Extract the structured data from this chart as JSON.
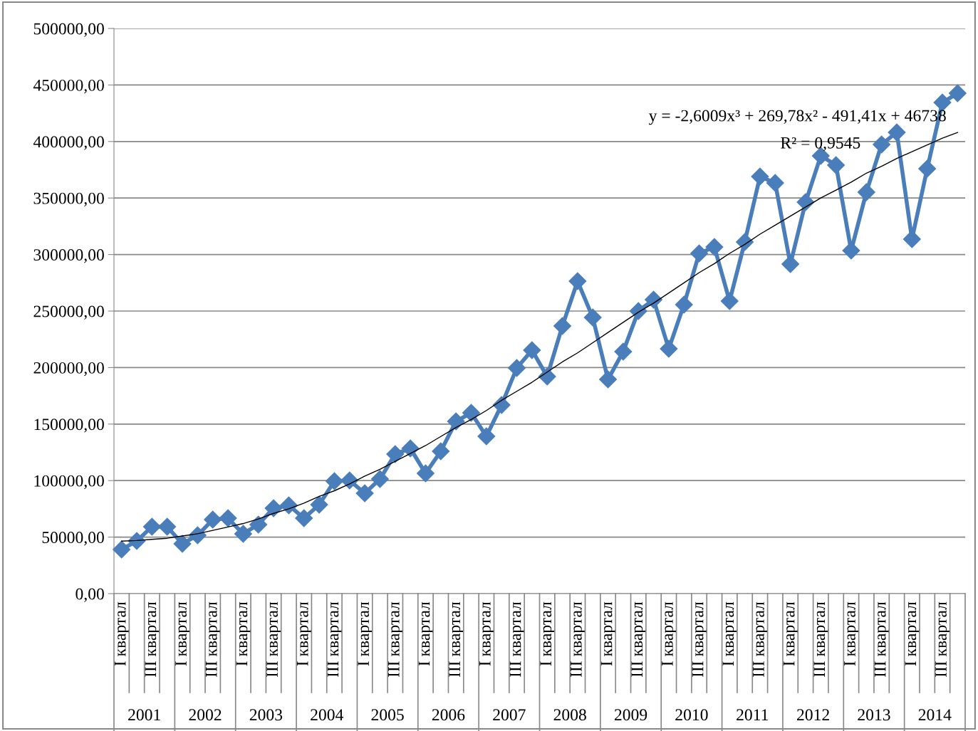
{
  "chart_data": {
    "type": "line",
    "categories": [
      "I квартал",
      null,
      "III квартал",
      null,
      "I квартал",
      null,
      "III квартал",
      null,
      "I квартал",
      null,
      "III квартал",
      null,
      "I квартал",
      null,
      "III квартал",
      null,
      "I квартал",
      null,
      "III квартал",
      null,
      "I квартал",
      null,
      "III квартал",
      null,
      "I квартал",
      null,
      "III квартал",
      null,
      "I квартал",
      null,
      "III квартал",
      null,
      "I квартал",
      null,
      "III квартал",
      null,
      "I квартал",
      null,
      "III квартал",
      null,
      "I квартал",
      null,
      "III квартал",
      null,
      "I квартал",
      null,
      "III квартал",
      null,
      "I квартал",
      null,
      "III квартал",
      null,
      "I квартал",
      null,
      "III квартал",
      null
    ],
    "series": [
      {
        "color": "#4a7ebb",
        "marker": "diamond",
        "values": [
          39000,
          46600,
          59200,
          59200,
          44100,
          51600,
          65500,
          66700,
          52900,
          61100,
          75600,
          78100,
          66700,
          78700,
          99500,
          100100,
          88800,
          101400,
          123400,
          128500,
          106400,
          125900,
          152400,
          159900,
          139200,
          166900,
          199600,
          215400,
          192100,
          236800,
          276400,
          244300,
          189500,
          214100,
          250000,
          260100,
          216600,
          255700,
          301000,
          306700,
          258800,
          311100,
          369000,
          363300,
          291500,
          346300,
          387300,
          379100,
          303500,
          355200,
          397400,
          408100,
          313600,
          375900,
          434500,
          442700
        ]
      },
      {
        "type": "line",
        "color": "#000000",
        "marker": "none",
        "values": [
          46500,
          47000,
          48000,
          49000,
          51000,
          53000,
          56000,
          59000,
          62000,
          66000,
          71000,
          75000,
          80000,
          86000,
          91000,
          97000,
          104000,
          110000,
          117000,
          124000,
          131000,
          139000,
          147000,
          154000,
          162000,
          171000,
          179000,
          187000,
          196000,
          205000,
          213000,
          222000,
          231000,
          240000,
          249000,
          257000,
          266000,
          275000,
          284000,
          292000,
          301000,
          309000,
          318000,
          326000,
          334000,
          342000,
          350000,
          357000,
          364000,
          372000,
          378000,
          385000,
          391000,
          397000,
          403000,
          408000
        ]
      }
    ],
    "ylim": [
      0,
      500000
    ],
    "yticks": [
      {
        "value": 0,
        "label": "0,00"
      },
      {
        "value": 50000,
        "label": "50000,00"
      },
      {
        "value": 100000,
        "label": "100000,00"
      },
      {
        "value": 150000,
        "label": "150000,00"
      },
      {
        "value": 200000,
        "label": "200000,00"
      },
      {
        "value": 250000,
        "label": "250000,00"
      },
      {
        "value": 300000,
        "label": "300000,00"
      },
      {
        "value": 350000,
        "label": "350000,00"
      },
      {
        "value": 400000,
        "label": "400000,00"
      },
      {
        "value": 450000,
        "label": "450000,00"
      },
      {
        "value": 500000,
        "label": "500000,00"
      }
    ],
    "grid": "y",
    "annotations": [
      "y = -2,6009x³ + 269,78x² - 491,41x + 46738",
      "R² = 0,9545",
      "2001",
      "2002",
      "2003",
      "2004",
      "2005",
      "2006",
      "2007",
      "2008",
      "2009",
      "2010",
      "2011",
      "2012",
      "2013",
      "2014"
    ]
  }
}
